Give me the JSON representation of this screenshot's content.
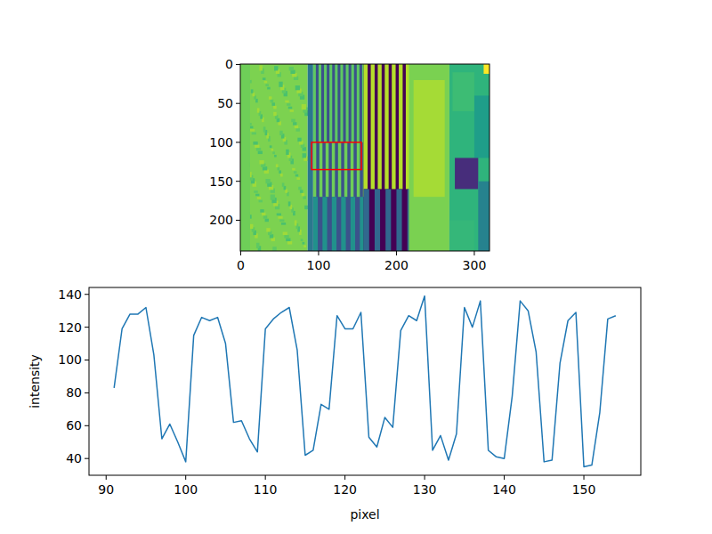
{
  "chart_data": [
    {
      "type": "image",
      "xlim": [
        -0.5,
        319.5
      ],
      "ylim": [
        239.5,
        -0.5
      ],
      "xticks": [
        0,
        100,
        200,
        300
      ],
      "yticks": [
        0,
        50,
        100,
        150,
        200
      ],
      "highlight": {
        "x": [
          91,
          155
        ],
        "y": [
          100,
          135
        ],
        "color": "red"
      }
    },
    {
      "type": "line",
      "x_label": "pixel",
      "y_label": "intensity",
      "x": [
        91,
        92,
        93,
        94,
        95,
        96,
        97,
        98,
        99,
        100,
        101,
        102,
        103,
        104,
        105,
        106,
        107,
        108,
        109,
        110,
        111,
        112,
        113,
        114,
        115,
        116,
        117,
        118,
        119,
        120,
        121,
        122,
        123,
        124,
        125,
        126,
        127,
        128,
        129,
        130,
        131,
        132,
        133,
        134,
        135,
        136,
        137,
        138,
        139,
        140,
        141,
        142,
        143,
        144,
        145,
        146,
        147,
        148,
        149,
        150,
        151,
        152,
        153,
        154
      ],
      "series": [
        {
          "color": "#1f77b4",
          "values": [
            83,
            119,
            128,
            128,
            132,
            103,
            52,
            61,
            50,
            38,
            115,
            126,
            124,
            126,
            110,
            62,
            63,
            52,
            44,
            119,
            125,
            129,
            132,
            106,
            42,
            45,
            73,
            70,
            127,
            119,
            119,
            129,
            53,
            47,
            65,
            59,
            118,
            127,
            124,
            139,
            45,
            54,
            39,
            55,
            132,
            120,
            136,
            45,
            41,
            40,
            78,
            136,
            130,
            105,
            38,
            39,
            98,
            124,
            129,
            35,
            36,
            68,
            125,
            127
          ]
        }
      ],
      "xlim": [
        87.85,
        157.15
      ],
      "ylim": [
        29.8,
        144.2
      ],
      "xticks": [
        90,
        100,
        110,
        120,
        130,
        140,
        150
      ],
      "yticks": [
        40,
        60,
        80,
        100,
        120,
        140
      ]
    }
  ]
}
